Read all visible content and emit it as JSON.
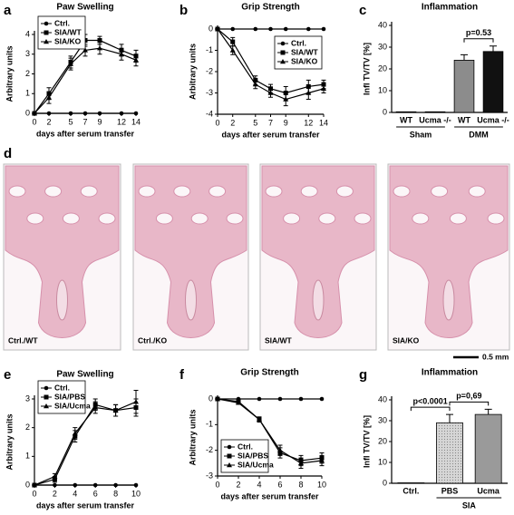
{
  "chart_data": [
    {
      "type": "line",
      "label": "a",
      "title": "Paw Swelling",
      "xlabel": "days after serum transfer",
      "ylabel": "Arbitrary units",
      "x": [
        0,
        2,
        5,
        7,
        9,
        12,
        14
      ],
      "xlim": [
        0,
        14
      ],
      "xticks": [
        0,
        2,
        5,
        7,
        9,
        12,
        14
      ],
      "ylim": [
        0,
        4
      ],
      "yticks": [
        0,
        1,
        2,
        3,
        4
      ],
      "legend": "upper left",
      "series": [
        {
          "name": "Ctrl.",
          "color": "#000000",
          "marker": "circle",
          "values": [
            0,
            0,
            0,
            0,
            0,
            0,
            0
          ],
          "errors": [
            0,
            0,
            0,
            0,
            0,
            0,
            0
          ]
        },
        {
          "name": "SIA/WT",
          "color": "#000000",
          "marker": "square",
          "values": [
            0,
            1.0,
            2.6,
            3.7,
            3.7,
            3.2,
            2.9
          ],
          "errors": [
            0,
            0.3,
            0.3,
            0.3,
            0.2,
            0.3,
            0.3
          ]
        },
        {
          "name": "SIA/KO",
          "color": "#000000",
          "marker": "triangle",
          "values": [
            0,
            0.8,
            2.5,
            3.2,
            3.3,
            3.0,
            2.7
          ],
          "errors": [
            0,
            0.3,
            0.3,
            0.3,
            0.3,
            0.3,
            0.3
          ]
        }
      ]
    },
    {
      "type": "line",
      "label": "b",
      "title": "Grip Strength",
      "xlabel": "days after serum transfer",
      "ylabel": "Arbitrary units",
      "x": [
        0,
        2,
        5,
        7,
        9,
        12,
        14
      ],
      "xlim": [
        0,
        14
      ],
      "xticks": [
        0,
        2,
        5,
        7,
        9,
        12,
        14
      ],
      "ylim": [
        -4,
        0
      ],
      "yticks": [
        0,
        -1,
        -2,
        -3,
        -4
      ],
      "legend": "upper right",
      "series": [
        {
          "name": "Ctrl.",
          "color": "#000000",
          "marker": "circle",
          "values": [
            0,
            0,
            0,
            0,
            0,
            0,
            0
          ],
          "errors": [
            0,
            0,
            0,
            0,
            0,
            0,
            0
          ]
        },
        {
          "name": "SIA/WT",
          "color": "#000000",
          "marker": "square",
          "values": [
            0,
            -0.6,
            -2.4,
            -2.8,
            -3.0,
            -2.7,
            -2.6
          ],
          "errors": [
            0,
            0.2,
            0.2,
            0.2,
            0.3,
            0.3,
            0.2
          ]
        },
        {
          "name": "SIA/KO",
          "color": "#000000",
          "marker": "triangle",
          "values": [
            0,
            -1.0,
            -2.6,
            -3.0,
            -3.3,
            -3.0,
            -2.8
          ],
          "errors": [
            0,
            0.2,
            0.2,
            0.2,
            0.3,
            0.3,
            0.2
          ]
        }
      ]
    },
    {
      "type": "bar",
      "label": "c",
      "title": "Inflammation",
      "ylabel": "Infl TV/TV [%]",
      "categories": [
        "WT",
        "Ucma -/-",
        "WT",
        "Ucma -/-"
      ],
      "values": [
        0.3,
        0.3,
        24,
        28
      ],
      "errors": [
        0,
        0,
        2.5,
        2.5
      ],
      "colors": [
        "#8c8c8c",
        "#111111",
        "#8c8c8c",
        "#111111"
      ],
      "ylim": [
        0,
        40
      ],
      "yticks": [
        0,
        10,
        20,
        30,
        40
      ],
      "groups": [
        {
          "name": "Sham",
          "members": [
            0,
            1
          ]
        },
        {
          "name": "DMM",
          "members": [
            2,
            3
          ]
        }
      ],
      "annotations": [
        {
          "text": "p=0.53",
          "between": [
            2,
            3
          ]
        }
      ]
    },
    {
      "type": "line",
      "label": "e",
      "title": "Paw Swelling",
      "xlabel": "days after serum transfer",
      "ylabel": "Arbitrary units",
      "x": [
        0,
        2,
        4,
        6,
        8,
        10
      ],
      "xlim": [
        0,
        10
      ],
      "xticks": [
        0,
        2,
        4,
        6,
        8,
        10
      ],
      "ylim": [
        0,
        3
      ],
      "yticks": [
        0,
        1,
        2,
        3
      ],
      "legend": "upper left",
      "series": [
        {
          "name": "Ctrl.",
          "color": "#000000",
          "marker": "circle",
          "values": [
            0,
            0,
            0,
            0,
            0,
            0
          ],
          "errors": [
            0,
            0,
            0,
            0,
            0,
            0
          ]
        },
        {
          "name": "SIA/PBS",
          "color": "#000000",
          "marker": "square",
          "values": [
            0,
            0.2,
            1.7,
            2.8,
            2.6,
            2.7
          ],
          "errors": [
            0,
            0.1,
            0.2,
            0.2,
            0.2,
            0.3
          ]
        },
        {
          "name": "SIA/Ucma",
          "color": "#000000",
          "marker": "triangle",
          "values": [
            0,
            0.3,
            1.8,
            2.7,
            2.6,
            2.9
          ],
          "errors": [
            0,
            0.1,
            0.2,
            0.2,
            0.2,
            0.4
          ]
        }
      ]
    },
    {
      "type": "line",
      "label": "f",
      "title": "Grip Strength",
      "xlabel": "days after serum transfer",
      "ylabel": "Arbitrary units",
      "x": [
        0,
        2,
        4,
        6,
        8,
        10
      ],
      "xlim": [
        0,
        10
      ],
      "xticks": [
        0,
        2,
        4,
        6,
        8,
        10
      ],
      "ylim": [
        -3,
        0
      ],
      "yticks": [
        0,
        -1,
        -2,
        -3
      ],
      "legend": "lower left",
      "series": [
        {
          "name": "Ctrl.",
          "color": "#000000",
          "marker": "circle",
          "values": [
            0,
            0,
            0,
            0,
            0,
            0
          ],
          "errors": [
            0,
            0,
            0,
            0,
            0,
            0
          ]
        },
        {
          "name": "SIA/PBS",
          "color": "#000000",
          "marker": "square",
          "values": [
            0,
            -0.1,
            -0.8,
            -2.1,
            -2.4,
            -2.3
          ],
          "errors": [
            0,
            0.05,
            0.1,
            0.2,
            0.2,
            0.2
          ]
        },
        {
          "name": "SIA/Ucma",
          "color": "#000000",
          "marker": "triangle",
          "values": [
            0,
            -0.15,
            -0.8,
            -2.0,
            -2.5,
            -2.4
          ],
          "errors": [
            0,
            0.05,
            0.1,
            0.2,
            0.2,
            0.2
          ]
        }
      ]
    },
    {
      "type": "bar",
      "label": "g",
      "title": "Inflammation",
      "ylabel": "Infl TV/TV [%]",
      "categories": [
        "Ctrl.",
        "PBS",
        "Ucma"
      ],
      "values": [
        0.2,
        29,
        33
      ],
      "errors": [
        0,
        4,
        2.5
      ],
      "colors": [
        "#cccccc",
        "#c8c8c8",
        "#9a9a9a"
      ],
      "ylim": [
        0,
        40
      ],
      "yticks": [
        0,
        10,
        20,
        30,
        40
      ],
      "groups": [
        {
          "name": "SIA",
          "members": [
            1,
            2
          ]
        }
      ],
      "annotations": [
        {
          "text": "p<0.0001",
          "between": [
            0,
            1
          ]
        },
        {
          "text": "p=0,69",
          "between": [
            1,
            2
          ]
        }
      ]
    }
  ],
  "images": {
    "label": "d",
    "panels": [
      "Ctrl./WT",
      "Ctrl./KO",
      "SIA/WT",
      "SIA/KO"
    ],
    "scale_bar": "0.5 mm"
  }
}
